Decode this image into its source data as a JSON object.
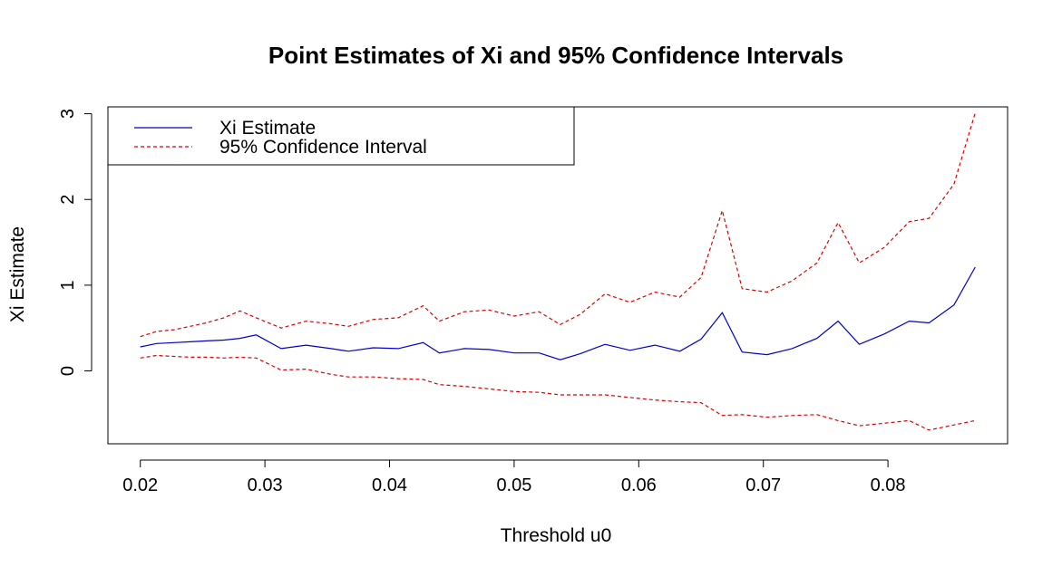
{
  "chart_data": {
    "type": "line",
    "title": "Point Estimates of Xi and 95% Confidence Intervals",
    "xlabel": "Threshold u0",
    "ylabel": "Xi Estimate",
    "xlim": [
      0.0174,
      0.0896
    ],
    "ylim": [
      -0.85,
      3.08
    ],
    "xticks": [
      0.02,
      0.03,
      0.04,
      0.05,
      0.06,
      0.07,
      0.08
    ],
    "xtick_labels": [
      "0.02",
      "0.03",
      "0.04",
      "0.05",
      "0.06",
      "0.07",
      "0.08"
    ],
    "yticks": [
      0,
      1,
      2,
      3
    ],
    "ytick_labels": [
      "0",
      "1",
      "2",
      "3"
    ],
    "grid": false,
    "legend_position": "top-left",
    "x": [
      0.02,
      0.0213,
      0.0227,
      0.024,
      0.0253,
      0.0267,
      0.028,
      0.0293,
      0.0313,
      0.0333,
      0.0353,
      0.0367,
      0.0387,
      0.0407,
      0.0427,
      0.044,
      0.046,
      0.048,
      0.05,
      0.052,
      0.0537,
      0.0553,
      0.0573,
      0.0593,
      0.0613,
      0.0633,
      0.065,
      0.0667,
      0.0683,
      0.0703,
      0.0723,
      0.0743,
      0.076,
      0.0777,
      0.0797,
      0.0817,
      0.0833,
      0.0853,
      0.087
    ],
    "series": [
      {
        "name": "Xi Estimate",
        "color": "#0000cc",
        "dash": "solid",
        "values": [
          0.28,
          0.32,
          0.33,
          0.34,
          0.35,
          0.36,
          0.38,
          0.42,
          0.26,
          0.3,
          0.26,
          0.23,
          0.27,
          0.26,
          0.33,
          0.21,
          0.26,
          0.25,
          0.21,
          0.21,
          0.13,
          0.2,
          0.31,
          0.24,
          0.3,
          0.23,
          0.37,
          0.68,
          0.22,
          0.19,
          0.26,
          0.38,
          0.58,
          0.31,
          0.43,
          0.58,
          0.56,
          0.77,
          1.21
        ]
      },
      {
        "name": "95% Confidence Interval",
        "color": "#dd0000",
        "dash": "dashed",
        "part": "upper",
        "values": [
          0.4,
          0.46,
          0.48,
          0.52,
          0.56,
          0.62,
          0.7,
          0.62,
          0.5,
          0.58,
          0.55,
          0.52,
          0.6,
          0.62,
          0.76,
          0.58,
          0.69,
          0.71,
          0.64,
          0.69,
          0.54,
          0.66,
          0.9,
          0.8,
          0.92,
          0.86,
          1.09,
          1.87,
          0.96,
          0.92,
          1.05,
          1.26,
          1.73,
          1.26,
          1.44,
          1.74,
          1.78,
          2.18,
          3.01
        ]
      },
      {
        "name": "",
        "color": "#dd0000",
        "dash": "dashed",
        "part": "lower",
        "values": [
          0.15,
          0.18,
          0.17,
          0.16,
          0.16,
          0.15,
          0.16,
          0.15,
          0.01,
          0.02,
          -0.04,
          -0.07,
          -0.07,
          -0.09,
          -0.1,
          -0.16,
          -0.18,
          -0.21,
          -0.24,
          -0.25,
          -0.28,
          -0.28,
          -0.28,
          -0.31,
          -0.34,
          -0.36,
          -0.37,
          -0.52,
          -0.51,
          -0.54,
          -0.52,
          -0.51,
          -0.58,
          -0.64,
          -0.61,
          -0.58,
          -0.69,
          -0.63,
          -0.58
        ]
      }
    ]
  },
  "legend": {
    "items": [
      {
        "label": "Xi Estimate",
        "color": "#0000cc",
        "dash": "solid"
      },
      {
        "label": "95% Confidence Interval",
        "color": "#dd0000",
        "dash": "dashed"
      }
    ]
  }
}
